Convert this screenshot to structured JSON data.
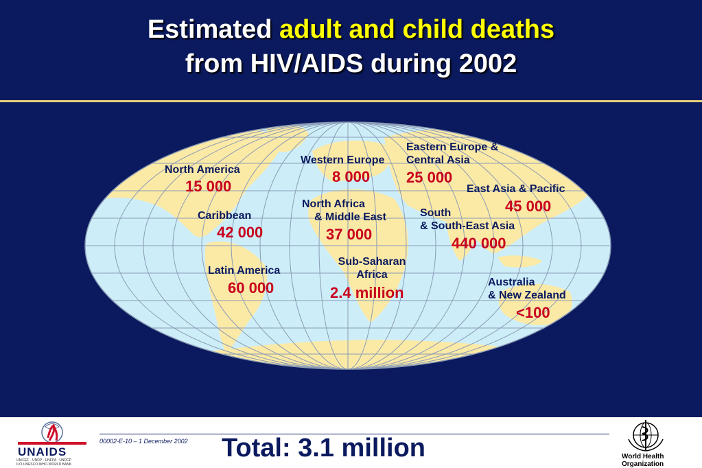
{
  "title": {
    "line1_prefix": "Estimated ",
    "line1_highlight": "adult and child deaths",
    "line2": "from HIV/AIDS during 2002"
  },
  "regions": [
    {
      "name_lines": [
        "North America"
      ],
      "value": "15 000"
    },
    {
      "name_lines": [
        "Caribbean"
      ],
      "value": "42 000"
    },
    {
      "name_lines": [
        "Latin America"
      ],
      "value": "60 000"
    },
    {
      "name_lines": [
        "Western Europe"
      ],
      "value": "8 000"
    },
    {
      "name_lines": [
        "North Africa",
        "& Middle East"
      ],
      "value": "37 000"
    },
    {
      "name_lines": [
        "Sub-Saharan",
        "Africa"
      ],
      "value": "2.4 million"
    },
    {
      "name_lines": [
        "Eastern Europe &",
        "Central Asia"
      ],
      "value": "25 000"
    },
    {
      "name_lines": [
        "East Asia & Pacific"
      ],
      "value": "45 000"
    },
    {
      "name_lines": [
        "South",
        "& South-East Asia"
      ],
      "value": "440 000"
    },
    {
      "name_lines": [
        "Australia",
        "& New Zealand"
      ],
      "value": "<100"
    }
  ],
  "footer": {
    "doc_code": "00002-E-10 – 1 December 2002",
    "total": "Total: 3.1 million",
    "unaids_wordmark": "UNAIDS",
    "unaids_sponsors": "UNICEF · UNDP · UNFPA · UNDCP ILO·UNESCO·WHO·WORLD BANK",
    "who_name_line1": "World Health",
    "who_name_line2": "Organization"
  },
  "colors": {
    "background": "#0b1a5e",
    "title_text": "#ffffff",
    "title_highlight": "#ffff00",
    "ocean": "#cdeef9",
    "land": "#fbe9a6",
    "grid": "#8a9bb5",
    "region_name": "#0b1a5e",
    "region_value": "#c8001e"
  }
}
